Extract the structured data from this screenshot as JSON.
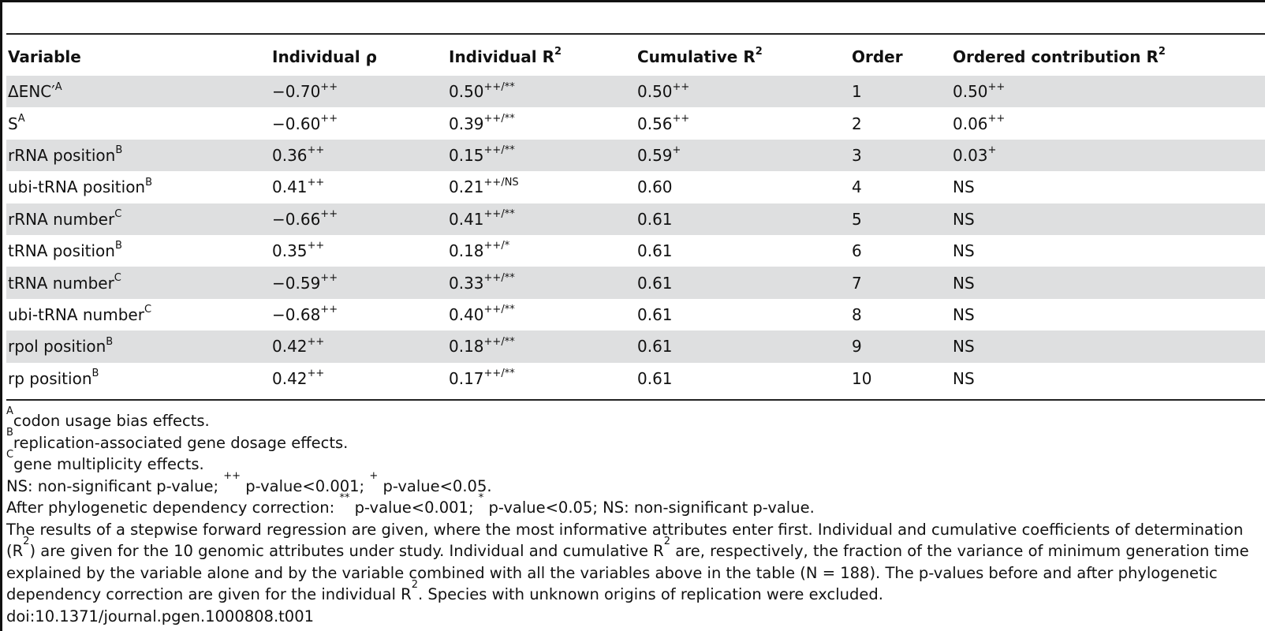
{
  "table": {
    "headers": [
      {
        "text": "Variable",
        "sup": ""
      },
      {
        "text": "Individual ρ",
        "sup": ""
      },
      {
        "text": "Individual R",
        "sup": "2"
      },
      {
        "text": "Cumulative R",
        "sup": "2"
      },
      {
        "text": "Order",
        "sup": ""
      },
      {
        "text": "Ordered contribution R",
        "sup": "2"
      }
    ],
    "rows": [
      {
        "var": "ΔENC′",
        "var_sup": "A",
        "rho": "−0.70",
        "rho_sup": "++",
        "ind": "0.50",
        "ind_sup": "++/**",
        "cum": "0.50",
        "cum_sup": "++",
        "order": "1",
        "contrib": "0.50",
        "contrib_sup": "++"
      },
      {
        "var": "S",
        "var_sup": "A",
        "rho": "−0.60",
        "rho_sup": "++",
        "ind": "0.39",
        "ind_sup": "++/**",
        "cum": "0.56",
        "cum_sup": "++",
        "order": "2",
        "contrib": "0.06",
        "contrib_sup": "++"
      },
      {
        "var": "rRNA position",
        "var_sup": "B",
        "rho": "0.36",
        "rho_sup": "++",
        "ind": "0.15",
        "ind_sup": "++/**",
        "cum": "0.59",
        "cum_sup": "+",
        "order": "3",
        "contrib": "0.03",
        "contrib_sup": "+"
      },
      {
        "var": "ubi-tRNA position",
        "var_sup": "B",
        "rho": "0.41",
        "rho_sup": "++",
        "ind": "0.21",
        "ind_sup": "++/NS",
        "cum": "0.60",
        "cum_sup": "",
        "order": "4",
        "contrib": "NS",
        "contrib_sup": ""
      },
      {
        "var": "rRNA number",
        "var_sup": "C",
        "rho": "−0.66",
        "rho_sup": "++",
        "ind": "0.41",
        "ind_sup": "++/**",
        "cum": "0.61",
        "cum_sup": "",
        "order": "5",
        "contrib": "NS",
        "contrib_sup": ""
      },
      {
        "var": "tRNA position",
        "var_sup": "B",
        "rho": "0.35",
        "rho_sup": "++",
        "ind": "0.18",
        "ind_sup": "++/*",
        "cum": "0.61",
        "cum_sup": "",
        "order": "6",
        "contrib": "NS",
        "contrib_sup": ""
      },
      {
        "var": "tRNA number",
        "var_sup": "C",
        "rho": "−0.59",
        "rho_sup": "++",
        "ind": "0.33",
        "ind_sup": "++/**",
        "cum": "0.61",
        "cum_sup": "",
        "order": "7",
        "contrib": "NS",
        "contrib_sup": ""
      },
      {
        "var": "ubi-tRNA number",
        "var_sup": "C",
        "rho": "−0.68",
        "rho_sup": "++",
        "ind": "0.40",
        "ind_sup": "++/**",
        "cum": "0.61",
        "cum_sup": "",
        "order": "8",
        "contrib": "NS",
        "contrib_sup": ""
      },
      {
        "var": "rpol position",
        "var_sup": "B",
        "rho": "0.42",
        "rho_sup": "++",
        "ind": "0.18",
        "ind_sup": "++/**",
        "cum": "0.61",
        "cum_sup": "",
        "order": "9",
        "contrib": "NS",
        "contrib_sup": ""
      },
      {
        "var": "rp position",
        "var_sup": "B",
        "rho": "0.42",
        "rho_sup": "++",
        "ind": "0.17",
        "ind_sup": "++/**",
        "cum": "0.61",
        "cum_sup": "",
        "order": "10",
        "contrib": "NS",
        "contrib_sup": ""
      }
    ]
  },
  "footnotes": {
    "a_mark": "A",
    "a_text": "codon usage bias effects.",
    "b_mark": "B",
    "b_text": "replication-associated gene dosage effects.",
    "c_mark": "C",
    "c_text": "gene multiplicity effects.",
    "ns_1": "NS: non-significant p-value;",
    "ns_m1": "++",
    "ns_2": "p-value<0.001;",
    "ns_m2": "+",
    "ns_3": "p-value<0.05.",
    "ph_1": "After phylogenetic dependency correction:",
    "ph_m1": "**",
    "ph_2": "p-value<0.001;",
    "ph_m2": "*",
    "ph_3": "p-value<0.05; NS: non-significant p-value.",
    "desc_1": "The results of a stepwise forward regression are given, where the most informative attributes enter first. Individual and cumulative coefficients of determination (R",
    "desc_s1": "2",
    "desc_2": ") are given for the 10 genomic attributes under study. Individual and cumulative R",
    "desc_s2": "2",
    "desc_3": " are, respectively, the fraction of the variance of minimum generation time explained by the variable alone and by the variable combined with all the variables above in the table (N = 188). The p-values before and after phylogenetic dependency correction are given for the individual R",
    "desc_s3": "2",
    "desc_4": ". Species with unknown origins of replication were excluded.",
    "doi": "doi:10.1371/journal.pgen.1000808.t001"
  }
}
